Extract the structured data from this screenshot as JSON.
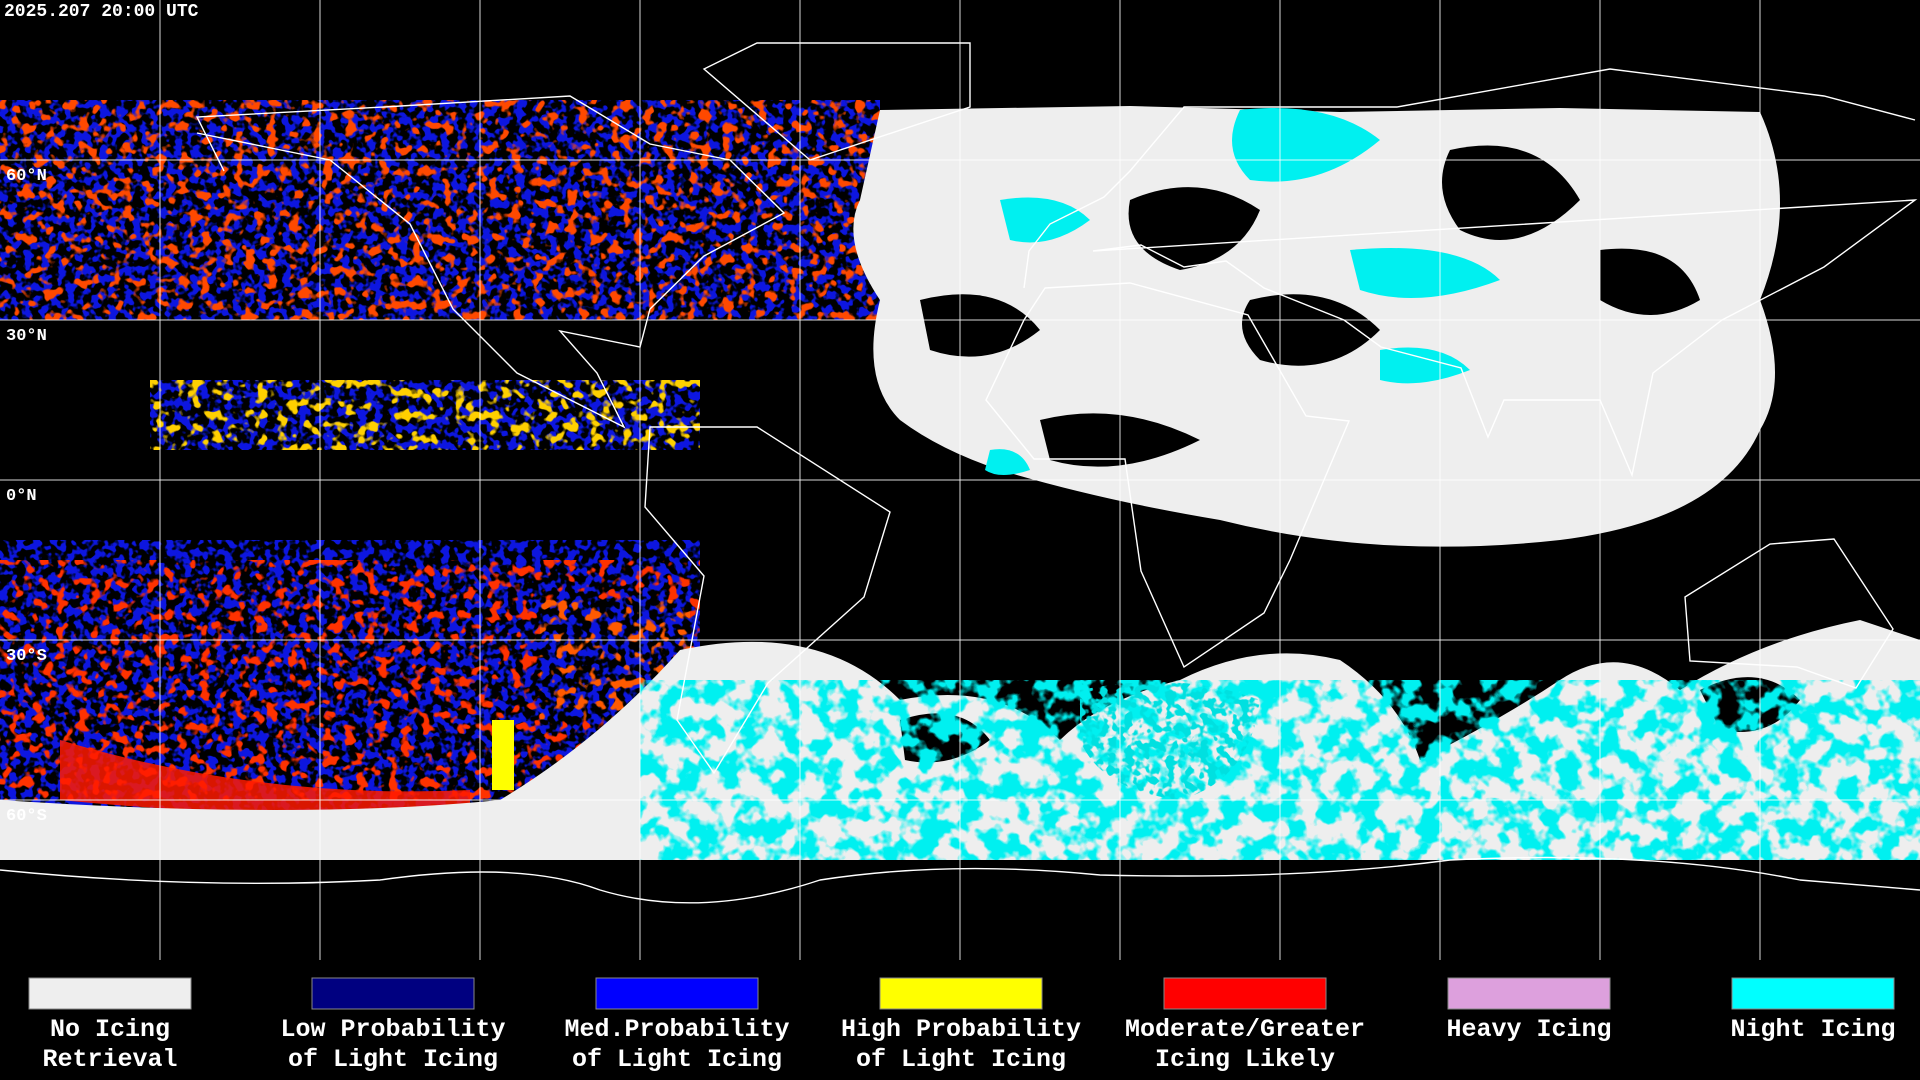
{
  "header": {
    "timestamp": "2025.207 20:00 UTC"
  },
  "map": {
    "latitude_labels": [
      "60°N",
      "30°N",
      "0°N",
      "30°S",
      "60°S"
    ]
  },
  "legend": {
    "items": [
      {
        "label": [
          "No Icing",
          "Retrieval"
        ],
        "color": "#eeeeee"
      },
      {
        "label": [
          "Low Probability",
          "of Light Icing"
        ],
        "color": "#000080"
      },
      {
        "label": [
          "Med.Probability",
          "of Light Icing"
        ],
        "color": "#0000ff"
      },
      {
        "label": [
          "High Probability",
          "of Light Icing"
        ],
        "color": "#ffff00"
      },
      {
        "label": [
          "Moderate/Greater",
          "Icing Likely"
        ],
        "color": "#ff0000"
      },
      {
        "label": [
          "Heavy Icing"
        ],
        "color": "#dda0dd"
      },
      {
        "label": [
          "Night Icing"
        ],
        "color": "#00ffff"
      }
    ]
  }
}
